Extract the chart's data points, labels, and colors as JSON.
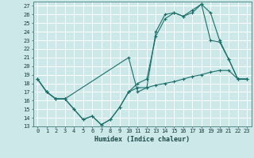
{
  "title": "",
  "xlabel": "Humidex (Indice chaleur)",
  "bg_color": "#cce8e8",
  "grid_color": "#ffffff",
  "line_color": "#1a6e6a",
  "xlim": [
    -0.5,
    23.5
  ],
  "ylim": [
    13,
    27.5
  ],
  "yticks": [
    13,
    14,
    15,
    16,
    17,
    18,
    19,
    20,
    21,
    22,
    23,
    24,
    25,
    26,
    27
  ],
  "xticks": [
    0,
    1,
    2,
    3,
    4,
    5,
    6,
    7,
    8,
    9,
    10,
    11,
    12,
    13,
    14,
    15,
    16,
    17,
    18,
    19,
    20,
    21,
    22,
    23
  ],
  "line1_x": [
    0,
    1,
    2,
    3,
    4,
    5,
    6,
    7,
    8,
    9,
    10,
    11,
    12,
    13,
    14,
    15,
    16,
    17,
    18,
    19,
    20,
    21,
    22,
    23
  ],
  "line1_y": [
    18.5,
    17.0,
    16.2,
    16.2,
    15.0,
    13.8,
    14.2,
    13.2,
    13.8,
    15.2,
    17.0,
    17.5,
    17.5,
    17.8,
    18.0,
    18.2,
    18.5,
    18.8,
    19.0,
    19.3,
    19.5,
    19.5,
    18.5,
    18.5
  ],
  "line2_x": [
    0,
    1,
    2,
    3,
    10,
    11,
    12,
    13,
    14,
    15,
    16,
    17,
    18,
    19,
    20,
    21,
    22,
    23
  ],
  "line2_y": [
    18.5,
    17.0,
    16.2,
    16.2,
    21.0,
    17.0,
    17.5,
    24.0,
    26.0,
    26.2,
    25.8,
    26.5,
    27.2,
    26.2,
    23.0,
    20.8,
    18.5,
    18.5
  ],
  "line3_x": [
    0,
    1,
    2,
    3,
    4,
    5,
    6,
    7,
    8,
    9,
    10,
    11,
    12,
    13,
    14,
    15,
    16,
    17,
    18,
    19,
    20,
    21,
    22,
    23
  ],
  "line3_y": [
    18.5,
    17.0,
    16.2,
    16.2,
    15.0,
    13.8,
    14.2,
    13.2,
    13.8,
    15.2,
    17.0,
    18.0,
    18.5,
    23.5,
    25.5,
    26.2,
    25.8,
    26.2,
    27.2,
    23.0,
    22.8,
    20.8,
    18.5,
    18.5
  ]
}
